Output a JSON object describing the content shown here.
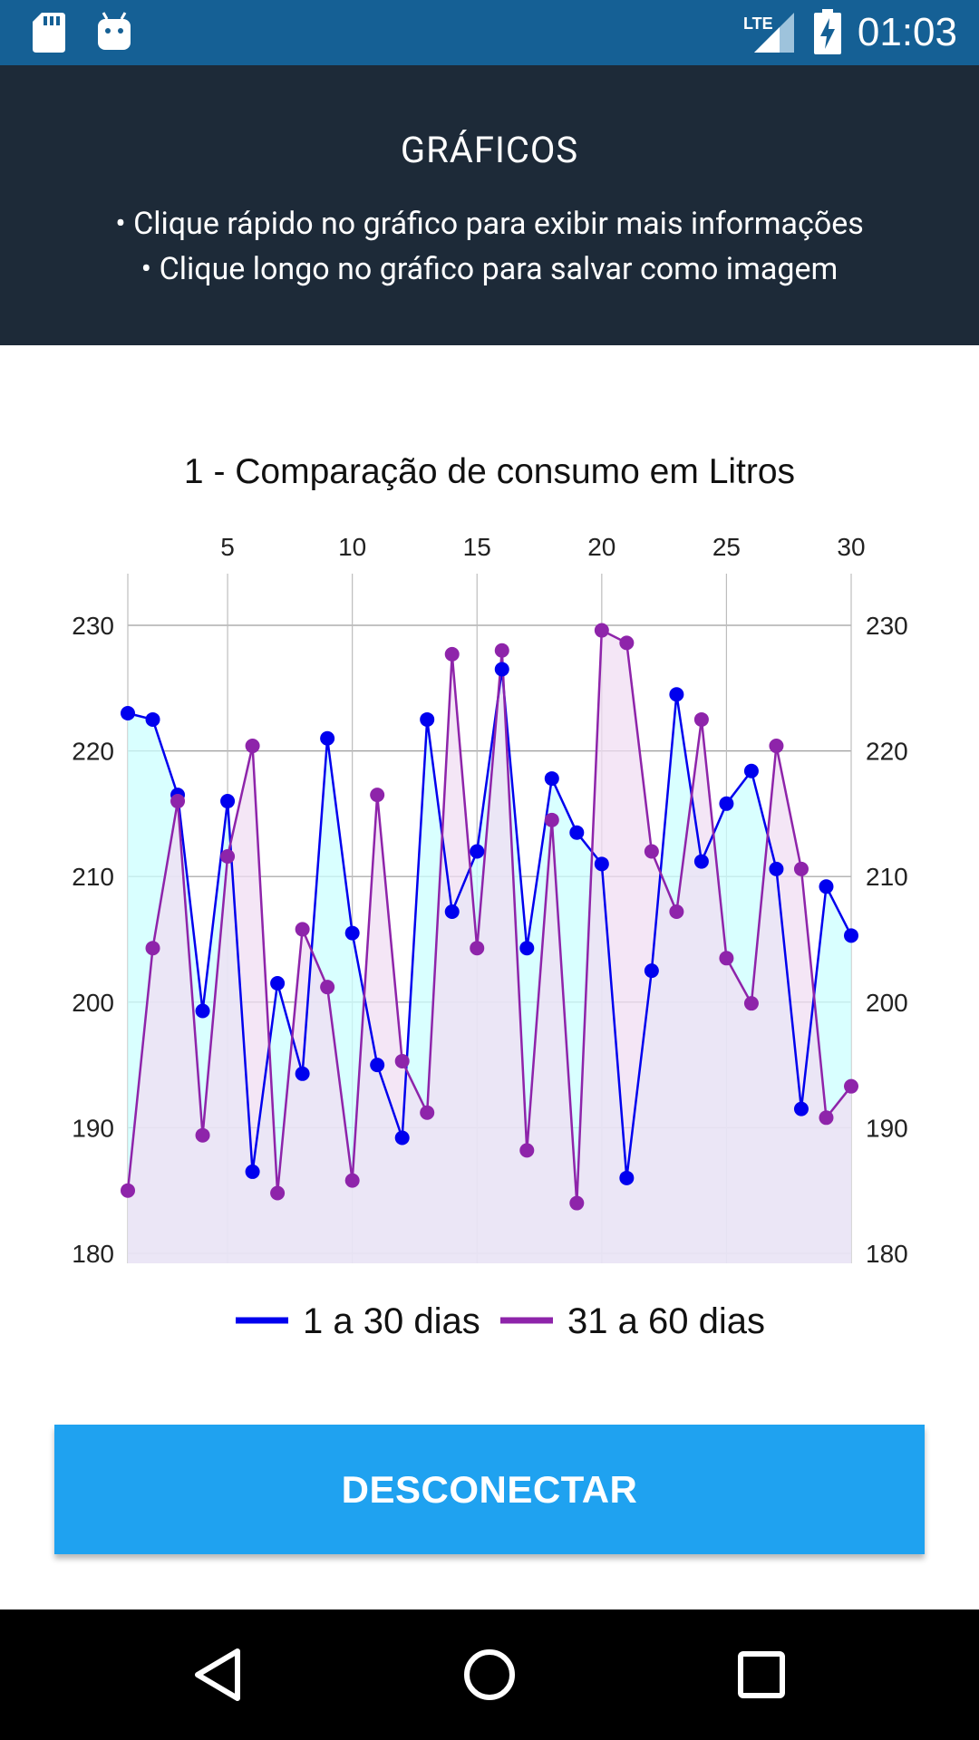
{
  "status_bar": {
    "time": "01:03",
    "network": "LTE",
    "icons": [
      "sd-card-icon",
      "android-debug-icon",
      "lte-signal-icon",
      "battery-charging-icon"
    ]
  },
  "header": {
    "title": "GRÁFICOS",
    "hint1": "• Clique rápido no gráfico para exibir mais informações",
    "hint2": "• Clique longo no gráfico para salvar como imagem"
  },
  "chart_data": {
    "type": "line",
    "title": "1 - Comparação de consumo em Litros",
    "x": [
      1,
      2,
      3,
      4,
      5,
      6,
      7,
      8,
      9,
      10,
      11,
      12,
      13,
      14,
      15,
      16,
      17,
      18,
      19,
      20,
      21,
      22,
      23,
      24,
      25,
      26,
      27,
      28,
      29,
      30
    ],
    "x_ticks": [
      5,
      10,
      15,
      20,
      25,
      30
    ],
    "y_ticks": [
      180,
      190,
      200,
      210,
      220,
      230
    ],
    "ylim": [
      180,
      235
    ],
    "grid": true,
    "legend_position": "bottom",
    "series": [
      {
        "name": "1 a 30 dias",
        "color": "#0000ee",
        "fill": "#ccffff",
        "values": [
          223,
          222.5,
          216.5,
          199.3,
          216,
          186.5,
          201.5,
          194.3,
          221,
          205.5,
          195,
          189.2,
          222.5,
          207.2,
          212,
          226.5,
          204.3,
          217.8,
          213.5,
          211,
          186,
          202.5,
          224.5,
          211.2,
          215.8,
          218.4,
          210.6,
          191.5,
          209.2,
          205.3
        ]
      },
      {
        "name": "31 a 60 dias",
        "color": "#8e24aa",
        "fill": "#f0ddf3",
        "values": [
          185,
          204.3,
          216,
          189.4,
          211.6,
          220.4,
          184.8,
          205.8,
          201.2,
          185.8,
          216.5,
          195.3,
          191.2,
          227.7,
          204.3,
          228,
          188.2,
          214.5,
          184,
          229.6,
          228.6,
          212,
          207.2,
          222.5,
          203.5,
          199.9,
          220.4,
          210.6,
          190.8,
          193.3
        ]
      }
    ]
  },
  "actions": {
    "disconnect_label": "DESCONECTAR"
  },
  "nav_bar": {
    "icons": [
      "back-icon",
      "home-icon",
      "recents-icon"
    ]
  }
}
